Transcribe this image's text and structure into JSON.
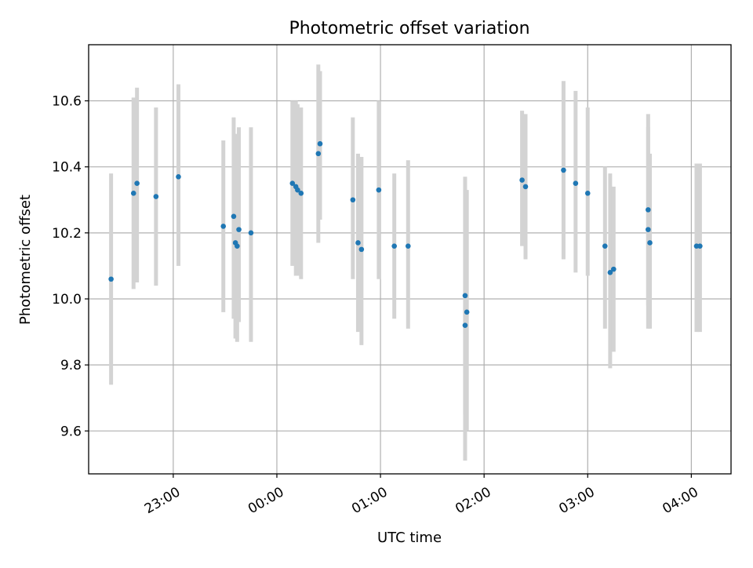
{
  "chart_data": {
    "type": "scatter",
    "title": "Photometric offset variation",
    "xlabel": "UTC time",
    "ylabel": "Photometric offset",
    "x_tick_labels": [
      "23:00",
      "00:00",
      "01:00",
      "02:00",
      "03:00",
      "04:00"
    ],
    "x_tick_times": [
      "23:00",
      "00:00",
      "01:00",
      "02:00",
      "03:00",
      "04:00"
    ],
    "y_ticks": [
      9.6,
      9.8,
      10.0,
      10.2,
      10.4,
      10.6
    ],
    "y_tick_labels": [
      "9.6",
      "9.8",
      "10.0",
      "10.2",
      "10.4",
      "10.6"
    ],
    "xlim": [
      "22:11",
      "04:23"
    ],
    "ylim": [
      9.47,
      10.77
    ],
    "grid": true,
    "colors": {
      "marker": "#1f77b4",
      "errorbar": "#d3d3d3"
    },
    "series": [
      {
        "points": [
          {
            "time": "22:24",
            "y": 10.06,
            "err_low": 9.74,
            "err_high": 10.38
          },
          {
            "time": "22:37",
            "y": 10.32,
            "err_low": 10.03,
            "err_high": 10.61
          },
          {
            "time": "22:39",
            "y": 10.35,
            "err_low": 10.05,
            "err_high": 10.64
          },
          {
            "time": "22:50",
            "y": 10.31,
            "err_low": 10.04,
            "err_high": 10.58
          },
          {
            "time": "23:03",
            "y": 10.37,
            "err_low": 10.1,
            "err_high": 10.65
          },
          {
            "time": "23:29",
            "y": 10.22,
            "err_low": 9.96,
            "err_high": 10.48
          },
          {
            "time": "23:35",
            "y": 10.25,
            "err_low": 9.94,
            "err_high": 10.55
          },
          {
            "time": "23:36",
            "y": 10.17,
            "err_low": 9.88,
            "err_high": 10.46
          },
          {
            "time": "23:37",
            "y": 10.16,
            "err_low": 9.87,
            "err_high": 10.5
          },
          {
            "time": "23:38",
            "y": 10.21,
            "err_low": 9.93,
            "err_high": 10.52
          },
          {
            "time": "23:45",
            "y": 10.2,
            "err_low": 9.87,
            "err_high": 10.52
          },
          {
            "time": "00:09",
            "y": 10.35,
            "err_low": 10.1,
            "err_high": 10.6
          },
          {
            "time": "00:11",
            "y": 10.34,
            "err_low": 10.07,
            "err_high": 10.6
          },
          {
            "time": "00:12",
            "y": 10.33,
            "err_low": 10.07,
            "err_high": 10.59
          },
          {
            "time": "00:14",
            "y": 10.32,
            "err_low": 10.06,
            "err_high": 10.58
          },
          {
            "time": "00:24",
            "y": 10.44,
            "err_low": 10.17,
            "err_high": 10.71
          },
          {
            "time": "00:25",
            "y": 10.47,
            "err_low": 10.24,
            "err_high": 10.69
          },
          {
            "time": "00:44",
            "y": 10.3,
            "err_low": 10.06,
            "err_high": 10.55
          },
          {
            "time": "00:47",
            "y": 10.17,
            "err_low": 9.9,
            "err_high": 10.44
          },
          {
            "time": "00:49",
            "y": 10.15,
            "err_low": 9.86,
            "err_high": 10.43
          },
          {
            "time": "00:59",
            "y": 10.33,
            "err_low": 10.06,
            "err_high": 10.6
          },
          {
            "time": "01:08",
            "y": 10.16,
            "err_low": 9.94,
            "err_high": 10.38
          },
          {
            "time": "01:16",
            "y": 10.16,
            "err_low": 9.91,
            "err_high": 10.42
          },
          {
            "time": "01:49",
            "y": 10.01,
            "err_low": 9.65,
            "err_high": 10.37
          },
          {
            "time": "01:49",
            "y": 9.92,
            "err_low": 9.51,
            "err_high": 10.33
          },
          {
            "time": "01:50",
            "y": 9.96,
            "err_low": 9.6,
            "err_high": 10.33
          },
          {
            "time": "02:22",
            "y": 10.36,
            "err_low": 10.16,
            "err_high": 10.57
          },
          {
            "time": "02:24",
            "y": 10.34,
            "err_low": 10.12,
            "err_high": 10.56
          },
          {
            "time": "02:46",
            "y": 10.39,
            "err_low": 10.12,
            "err_high": 10.66
          },
          {
            "time": "02:53",
            "y": 10.35,
            "err_low": 10.08,
            "err_high": 10.63
          },
          {
            "time": "03:00",
            "y": 10.32,
            "err_low": 10.07,
            "err_high": 10.58
          },
          {
            "time": "03:10",
            "y": 10.16,
            "err_low": 9.91,
            "err_high": 10.4
          },
          {
            "time": "03:13",
            "y": 10.08,
            "err_low": 9.79,
            "err_high": 10.38
          },
          {
            "time": "03:15",
            "y": 10.09,
            "err_low": 9.84,
            "err_high": 10.34
          },
          {
            "time": "03:35",
            "y": 10.21,
            "err_low": 9.91,
            "err_high": 10.52
          },
          {
            "time": "03:35",
            "y": 10.27,
            "err_low": 9.98,
            "err_high": 10.56
          },
          {
            "time": "03:36",
            "y": 10.17,
            "err_low": 9.91,
            "err_high": 10.44
          },
          {
            "time": "04:03",
            "y": 10.16,
            "err_low": 9.9,
            "err_high": 10.41
          },
          {
            "time": "04:05",
            "y": 10.16,
            "err_low": 9.9,
            "err_high": 10.41
          }
        ]
      }
    ]
  }
}
